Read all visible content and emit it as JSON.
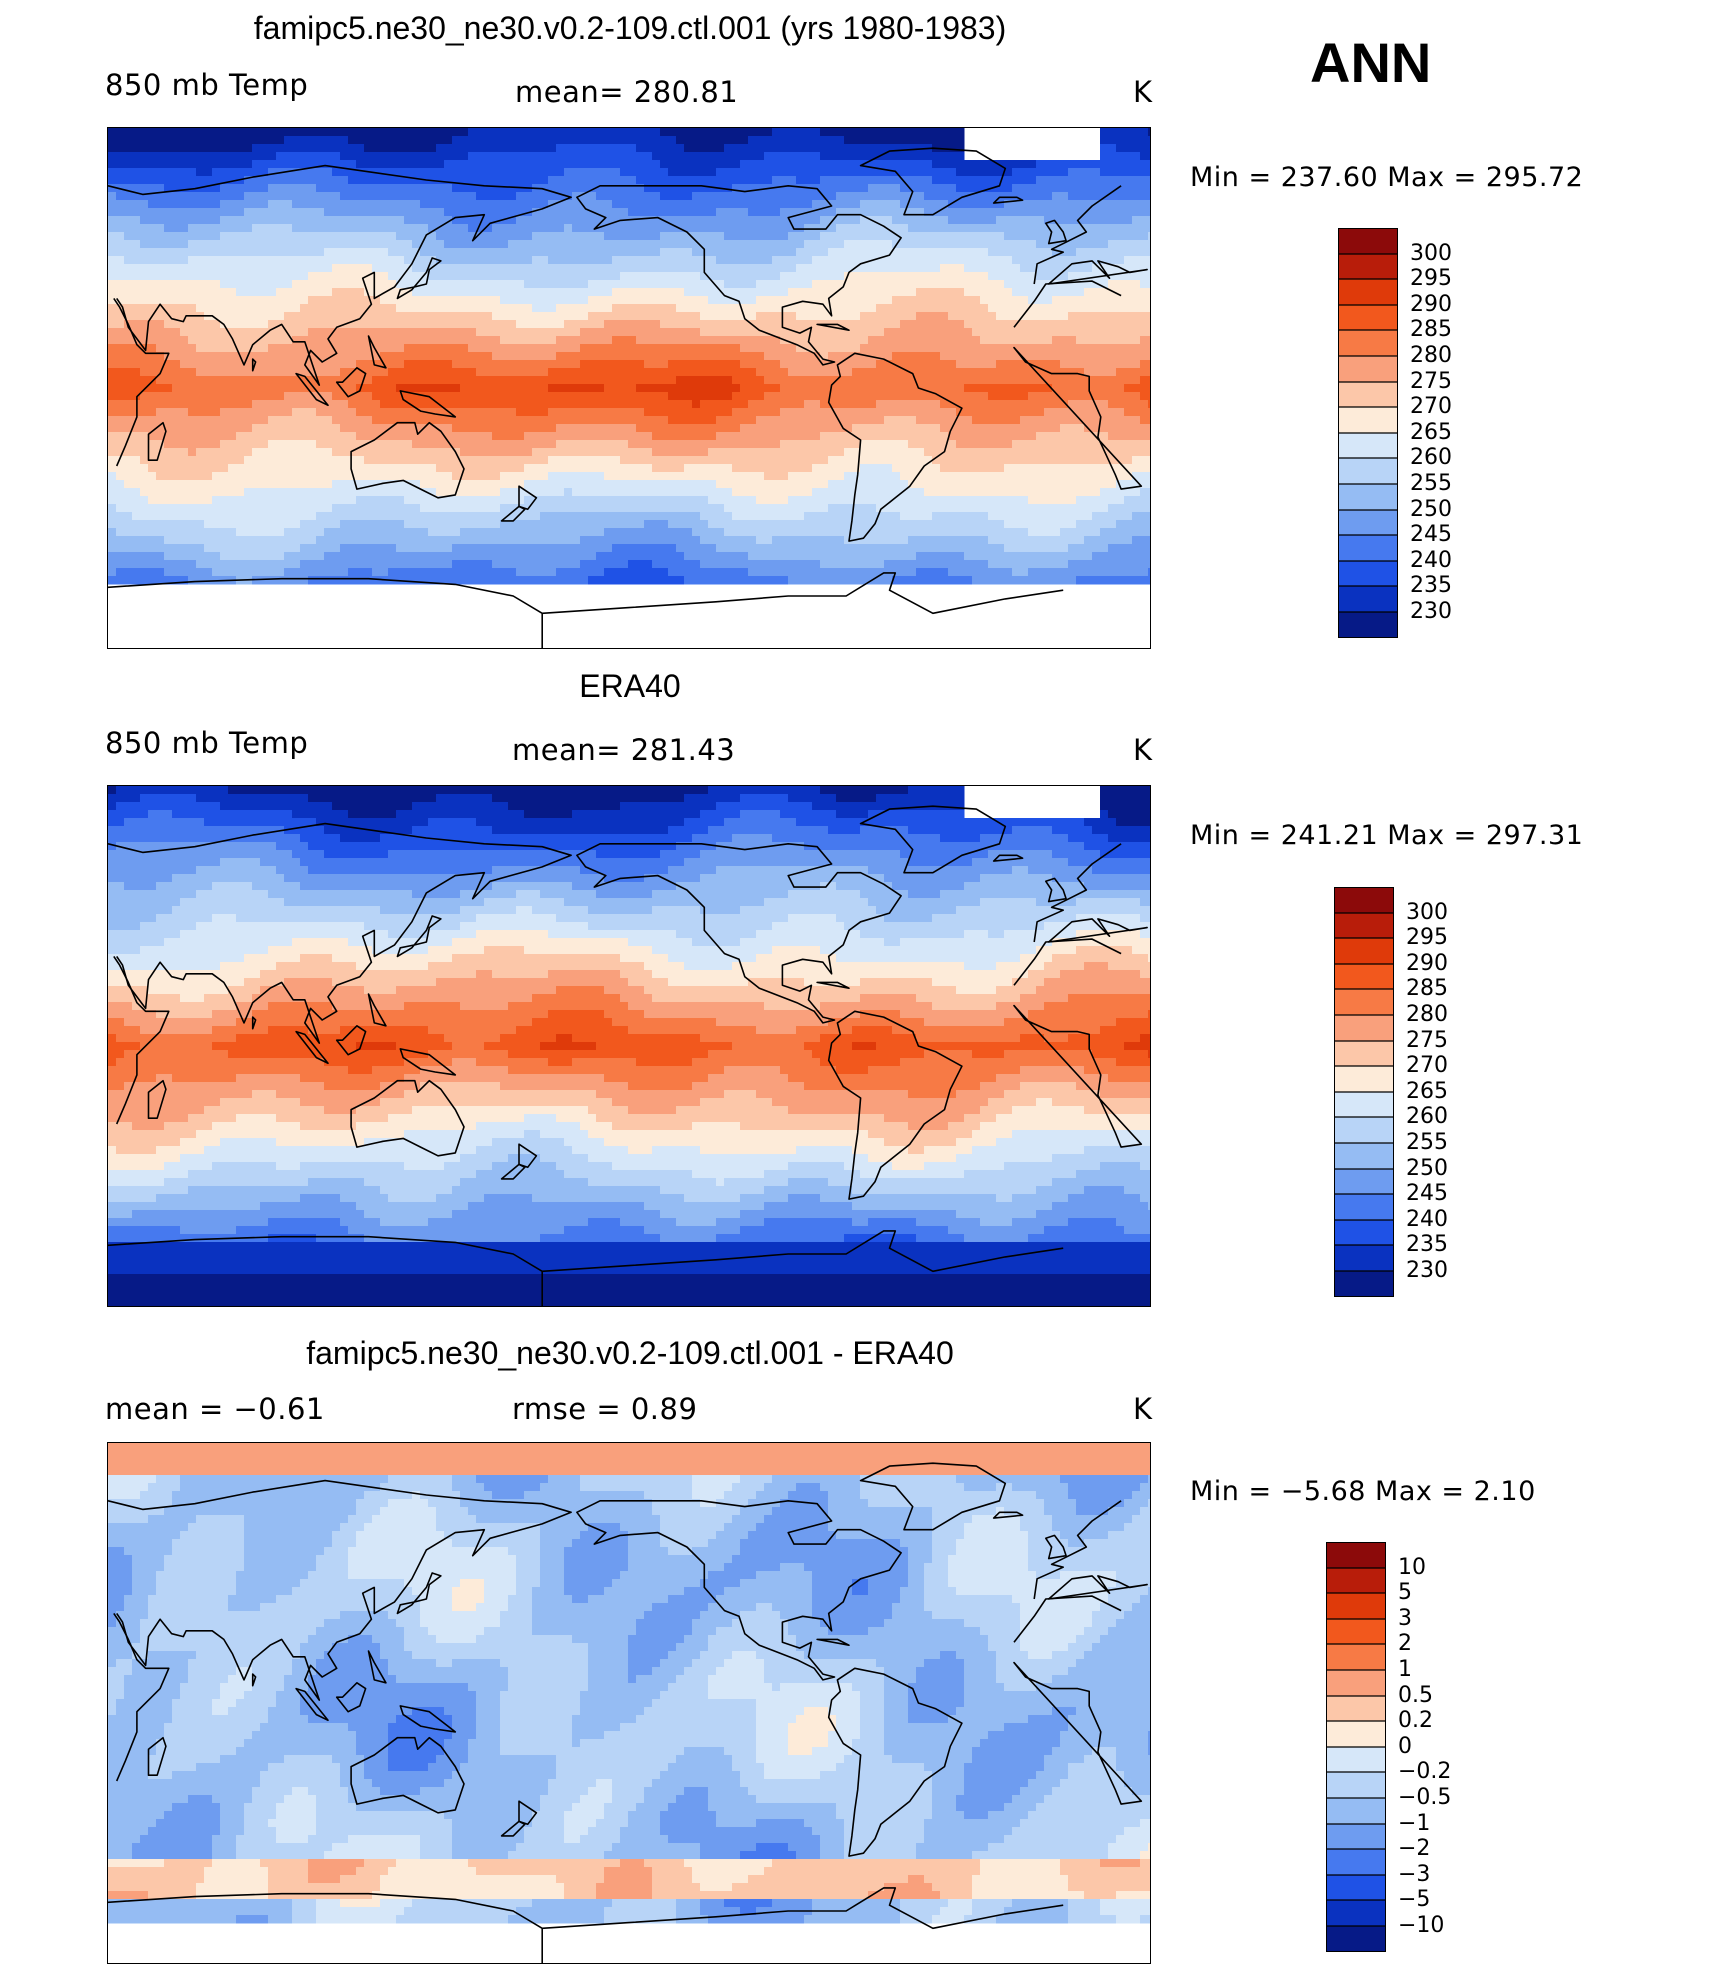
{
  "season": "ANN",
  "panels": [
    {
      "id": "model",
      "title": "famipc5.ne30_ne30.v0.2-109.ctl.001 (yrs 1980-1983)",
      "left_label": "850  mb  Temp",
      "center_label": "mean=  280.81",
      "units": "K",
      "minmax": "Min  =  237.60  Max  =  295.72",
      "colorbar": {
        "labels": [
          "300",
          "295",
          "290",
          "285",
          "280",
          "275",
          "270",
          "265",
          "260",
          "255",
          "250",
          "245",
          "240",
          "235",
          "230"
        ],
        "colors": [
          "#8c0a0a",
          "#b81d0a",
          "#df3a0a",
          "#f2581d",
          "#f77a45",
          "#f9a07c",
          "#fcc7a9",
          "#fdebd9",
          "#d6e7f9",
          "#b8d4f7",
          "#95bcf3",
          "#6e9cf0",
          "#4679ef",
          "#1f52e6",
          "#0a32c0",
          "#061a87"
        ]
      },
      "field": "abs"
    },
    {
      "id": "obs",
      "title": "ERA40",
      "left_label": "850  mb  Temp",
      "center_label": "mean=  281.43",
      "units": "K",
      "minmax": "Min  =  241.21  Max  =  297.31",
      "colorbar": {
        "labels": [
          "300",
          "295",
          "290",
          "285",
          "280",
          "275",
          "270",
          "265",
          "260",
          "255",
          "250",
          "245",
          "240",
          "235",
          "230"
        ],
        "colors": [
          "#8c0a0a",
          "#b81d0a",
          "#df3a0a",
          "#f2581d",
          "#f77a45",
          "#f9a07c",
          "#fcc7a9",
          "#fdebd9",
          "#d6e7f9",
          "#b8d4f7",
          "#95bcf3",
          "#6e9cf0",
          "#4679ef",
          "#1f52e6",
          "#0a32c0",
          "#061a87"
        ]
      },
      "field": "abs"
    },
    {
      "id": "diff",
      "title": "famipc5.ne30_ne30.v0.2-109.ctl.001 - ERA40",
      "left_label": "mean  =     −0.61",
      "center_label": "rmse  =     0.89",
      "units": "K",
      "minmax": "Min  =    −5.68  Max  =      2.10",
      "colorbar": {
        "labels": [
          "10",
          "5",
          "3",
          "2",
          "1",
          "0.5",
          "0.2",
          "0",
          "−0.2",
          "−0.5",
          "−1",
          "−2",
          "−3",
          "−5",
          "−10"
        ],
        "colors": [
          "#8c0a0a",
          "#b81d0a",
          "#df3a0a",
          "#f2581d",
          "#f77a45",
          "#f9a07c",
          "#fcc7a9",
          "#fdebd9",
          "#d6e7f9",
          "#b8d4f7",
          "#95bcf3",
          "#6e9cf0",
          "#4679ef",
          "#1f52e6",
          "#0a32c0",
          "#061a87"
        ]
      },
      "field": "diff"
    }
  ]
}
